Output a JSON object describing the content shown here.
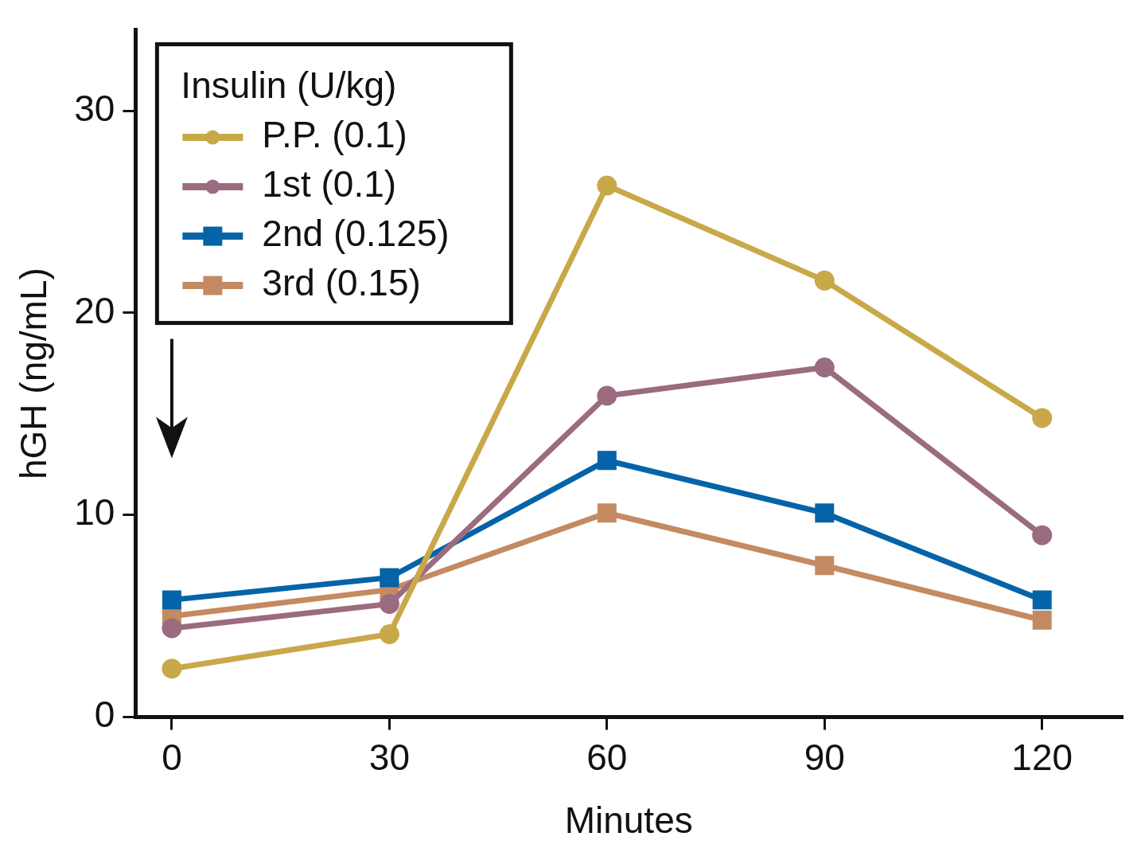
{
  "chart_data": {
    "type": "line",
    "x_label": "Minutes",
    "y_label": "hGH (ng/mL)",
    "legend_title": "Insulin (U/kg)",
    "legend": "upper left",
    "grid": false,
    "x": [
      0,
      30,
      60,
      90,
      120
    ],
    "xlim": [
      -5,
      131
    ],
    "xticks": [
      0,
      30,
      60,
      90,
      120
    ],
    "ylim": [
      0,
      34
    ],
    "yticks": [
      0,
      10,
      20,
      30
    ],
    "series": [
      {
        "name": "P.P. (0.1)",
        "color": "#c9a84a",
        "marker": "circle",
        "values": [
          2.4,
          4.1,
          26.3,
          21.6,
          14.8
        ]
      },
      {
        "name": "1st (0.1)",
        "color": "#9b6b80",
        "marker": "circle",
        "values": [
          4.4,
          5.6,
          15.9,
          17.3,
          9.0
        ]
      },
      {
        "name": "2nd (0.125)",
        "color": "#0563a8",
        "marker": "square",
        "values": [
          5.8,
          6.9,
          12.7,
          10.1,
          5.8
        ]
      },
      {
        "name": "3rd (0.15)",
        "color": "#c48a62",
        "marker": "square",
        "values": [
          5.0,
          6.3,
          10.1,
          7.5,
          4.8
        ]
      }
    ]
  }
}
